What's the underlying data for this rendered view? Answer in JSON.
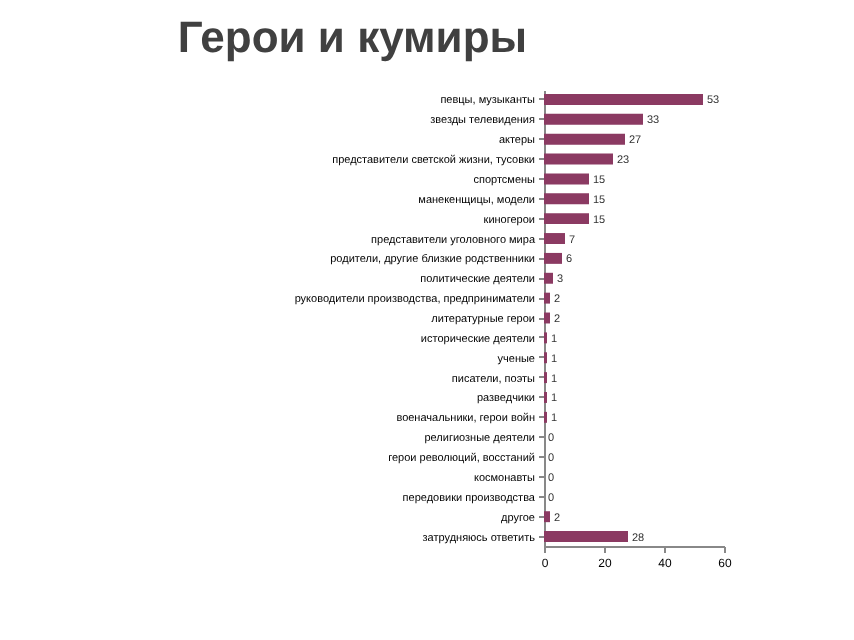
{
  "chart_data": {
    "type": "bar",
    "orientation": "horizontal",
    "title": "Герои и кумиры",
    "categories": [
      "певцы, музыканты",
      "звезды телевидения",
      "актеры",
      "представители светской жизни, тусовки",
      "спортсмены",
      "манекенщицы, модели",
      "киногерои",
      "представители уголовного мира",
      "родители, другие близкие родственники",
      "политические деятели",
      "руководители производства, предприниматели",
      "литературные герои",
      "исторические деятели",
      "ученые",
      "писатели, поэты",
      "разведчики",
      "военачальники, герои войн",
      "религиозные деятели",
      "герои революций, восстаний",
      "космонавты",
      "передовики производства",
      "другое",
      "затрудняюсь ответить"
    ],
    "values": [
      53,
      33,
      27,
      23,
      15,
      15,
      15,
      7,
      6,
      3,
      2,
      2,
      1,
      1,
      1,
      1,
      1,
      0,
      0,
      0,
      0,
      2,
      28
    ],
    "color": "#8b3a62",
    "xlim": [
      0,
      60
    ],
    "xticks": [
      0,
      20,
      40,
      60
    ],
    "data_labels": true
  }
}
